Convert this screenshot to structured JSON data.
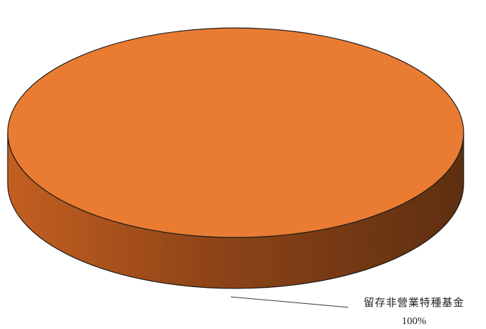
{
  "chart_data": {
    "type": "pie",
    "style": "3d",
    "categories": [
      "留存非營業特種基金"
    ],
    "values": [
      100
    ],
    "data_labels": [
      "100%"
    ],
    "colors": {
      "top": "#E97C32",
      "side_light": "#C45F20",
      "side_dark": "#5E2F10",
      "outline": "#1a1a1a",
      "leader_line": "#333333"
    },
    "legend": "none",
    "label_placement": "outside-bottom-right"
  }
}
